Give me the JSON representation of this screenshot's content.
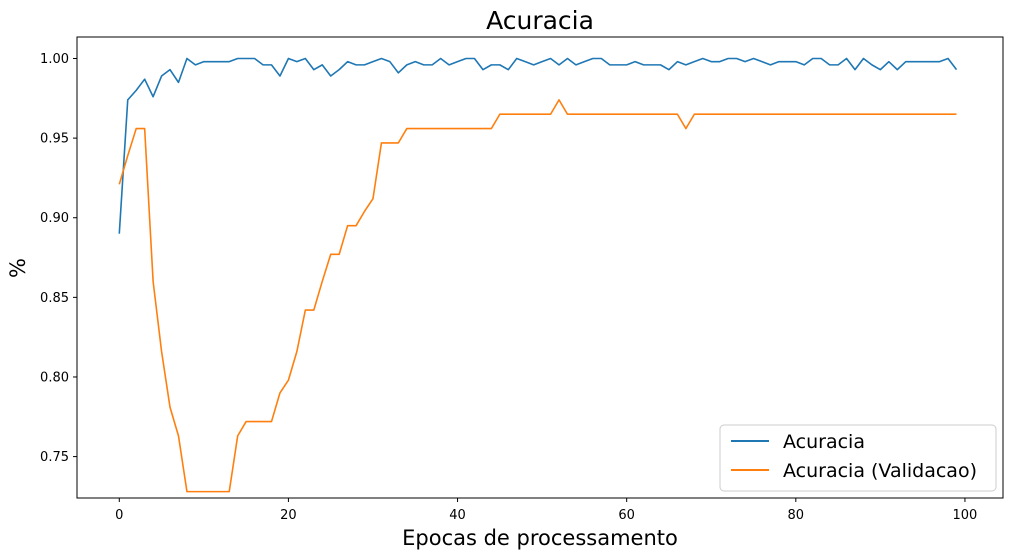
{
  "chart_data": {
    "type": "line",
    "title": "Acuracia",
    "xlabel": "Epocas de processamento",
    "ylabel": "%",
    "xlim": [
      -5,
      104.5
    ],
    "ylim": [
      0.724,
      1.0135
    ],
    "x_ticks": [
      0,
      20,
      40,
      60,
      80,
      100
    ],
    "y_ticks": [
      0.75,
      0.8,
      0.85,
      0.9,
      0.95,
      1.0
    ],
    "x_tick_labels": [
      "0",
      "20",
      "40",
      "60",
      "80",
      "100"
    ],
    "y_tick_labels": [
      "0.75",
      "0.80",
      "0.85",
      "0.90",
      "0.95",
      "1.00"
    ],
    "grid": false,
    "legend_position": "lower-right",
    "series": [
      {
        "name": "Acuracia",
        "color": "#1f77b4",
        "x": [
          0,
          1,
          2,
          3,
          4,
          5,
          6,
          7,
          8,
          9,
          10,
          11,
          12,
          13,
          14,
          15,
          16,
          17,
          18,
          19,
          20,
          21,
          22,
          23,
          24,
          25,
          26,
          27,
          28,
          29,
          30,
          31,
          32,
          33,
          34,
          35,
          36,
          37,
          38,
          39,
          40,
          41,
          42,
          43,
          44,
          45,
          46,
          47,
          48,
          49,
          50,
          51,
          52,
          53,
          54,
          55,
          56,
          57,
          58,
          59,
          60,
          61,
          62,
          63,
          64,
          65,
          66,
          67,
          68,
          69,
          70,
          71,
          72,
          73,
          74,
          75,
          76,
          77,
          78,
          79,
          80,
          81,
          82,
          83,
          84,
          85,
          86,
          87,
          88,
          89,
          90,
          91,
          92,
          93,
          94,
          95,
          96,
          97,
          98,
          99
        ],
        "values": [
          0.89,
          0.974,
          0.98,
          0.987,
          0.976,
          0.989,
          0.993,
          0.985,
          1.0,
          0.996,
          0.998,
          0.998,
          0.998,
          0.998,
          1.0,
          1.0,
          1.0,
          0.996,
          0.996,
          0.989,
          1.0,
          0.998,
          1.0,
          0.993,
          0.996,
          0.989,
          0.993,
          0.998,
          0.996,
          0.996,
          0.998,
          1.0,
          0.998,
          0.991,
          0.996,
          0.998,
          0.996,
          0.996,
          1.0,
          0.996,
          0.998,
          1.0,
          1.0,
          0.993,
          0.996,
          0.996,
          0.993,
          1.0,
          0.998,
          0.996,
          0.998,
          1.0,
          0.996,
          1.0,
          0.996,
          0.998,
          1.0,
          1.0,
          0.996,
          0.996,
          0.996,
          0.998,
          0.996,
          0.996,
          0.996,
          0.993,
          0.998,
          0.996,
          0.998,
          1.0,
          0.998,
          0.998,
          1.0,
          1.0,
          0.998,
          1.0,
          0.998,
          0.996,
          0.998,
          0.998,
          0.998,
          0.996,
          1.0,
          1.0,
          0.996,
          0.996,
          1.0,
          0.993,
          1.0,
          0.996,
          0.993,
          0.998,
          0.993,
          0.998,
          0.998,
          0.998,
          0.998,
          0.998,
          1.0,
          0.993
        ]
      },
      {
        "name": "Acuracia (Validacao)",
        "color": "#ff7f0e",
        "x": [
          0,
          1,
          2,
          3,
          4,
          5,
          6,
          7,
          8,
          9,
          10,
          11,
          12,
          13,
          14,
          15,
          16,
          17,
          18,
          19,
          20,
          21,
          22,
          23,
          24,
          25,
          26,
          27,
          28,
          29,
          30,
          31,
          32,
          33,
          34,
          35,
          36,
          37,
          38,
          39,
          40,
          41,
          42,
          43,
          44,
          45,
          46,
          47,
          48,
          49,
          50,
          51,
          52,
          53,
          54,
          55,
          56,
          57,
          58,
          59,
          60,
          61,
          62,
          63,
          64,
          65,
          66,
          67,
          68,
          69,
          70,
          71,
          72,
          73,
          74,
          75,
          76,
          77,
          78,
          79,
          80,
          81,
          82,
          83,
          84,
          85,
          86,
          87,
          88,
          89,
          90,
          91,
          92,
          93,
          94,
          95,
          96,
          97,
          98,
          99
        ],
        "values": [
          0.921,
          0.939,
          0.956,
          0.956,
          0.86,
          0.816,
          0.781,
          0.763,
          0.728,
          0.728,
          0.728,
          0.728,
          0.728,
          0.728,
          0.763,
          0.772,
          0.772,
          0.772,
          0.772,
          0.79,
          0.798,
          0.816,
          0.842,
          0.842,
          0.86,
          0.877,
          0.877,
          0.895,
          0.895,
          0.904,
          0.912,
          0.947,
          0.947,
          0.947,
          0.956,
          0.956,
          0.956,
          0.956,
          0.956,
          0.956,
          0.956,
          0.956,
          0.956,
          0.956,
          0.956,
          0.965,
          0.965,
          0.965,
          0.965,
          0.965,
          0.965,
          0.965,
          0.974,
          0.965,
          0.965,
          0.965,
          0.965,
          0.965,
          0.965,
          0.965,
          0.965,
          0.965,
          0.965,
          0.965,
          0.965,
          0.965,
          0.965,
          0.956,
          0.965,
          0.965,
          0.965,
          0.965,
          0.965,
          0.965,
          0.965,
          0.965,
          0.965,
          0.965,
          0.965,
          0.965,
          0.965,
          0.965,
          0.965,
          0.965,
          0.965,
          0.965,
          0.965,
          0.965,
          0.965,
          0.965,
          0.965,
          0.965,
          0.965,
          0.965,
          0.965,
          0.965,
          0.965,
          0.965,
          0.965,
          0.965
        ]
      }
    ]
  }
}
